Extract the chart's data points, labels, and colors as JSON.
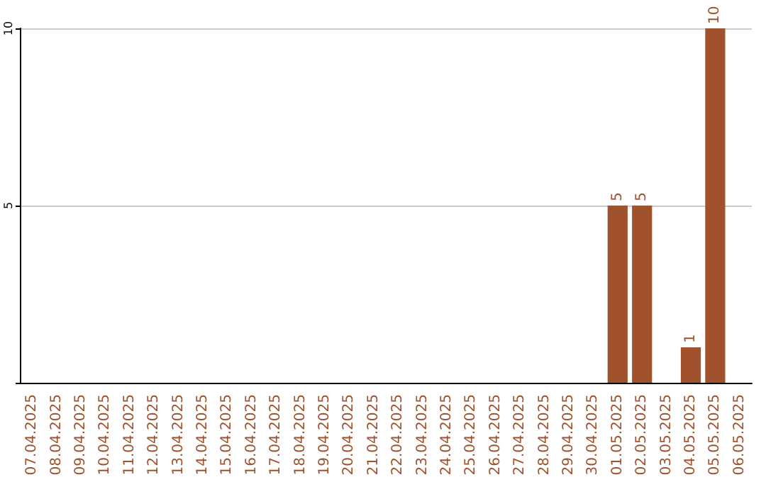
{
  "chart_data": {
    "type": "bar",
    "categories": [
      "07.04.2025",
      "08.04.2025",
      "09.04.2025",
      "10.04.2025",
      "11.04.2025",
      "12.04.2025",
      "13.04.2025",
      "14.04.2025",
      "15.04.2025",
      "16.04.2025",
      "17.04.2025",
      "18.04.2025",
      "19.04.2025",
      "20.04.2025",
      "21.04.2025",
      "22.04.2025",
      "23.04.2025",
      "24.04.2025",
      "25.04.2025",
      "26.04.2025",
      "27.04.2025",
      "28.04.2025",
      "29.04.2025",
      "30.04.2025",
      "01.05.2025",
      "02.05.2025",
      "03.05.2025",
      "04.05.2025",
      "05.05.2025",
      "06.05.2025"
    ],
    "values": [
      0,
      0,
      0,
      0,
      0,
      0,
      0,
      0,
      0,
      0,
      0,
      0,
      0,
      0,
      0,
      0,
      0,
      0,
      0,
      0,
      0,
      0,
      0,
      0,
      5,
      5,
      0,
      1,
      10,
      0
    ],
    "value_labels": [
      null,
      null,
      null,
      null,
      null,
      null,
      null,
      null,
      null,
      null,
      null,
      null,
      null,
      null,
      null,
      null,
      null,
      null,
      null,
      null,
      null,
      null,
      null,
      null,
      "5",
      "5",
      null,
      "1",
      "10",
      null
    ],
    "color": "#a0522d",
    "ylim": [
      0,
      10
    ],
    "yticks": [
      {
        "value": 0,
        "label": null
      },
      5,
      10
    ],
    "grid": "y"
  }
}
